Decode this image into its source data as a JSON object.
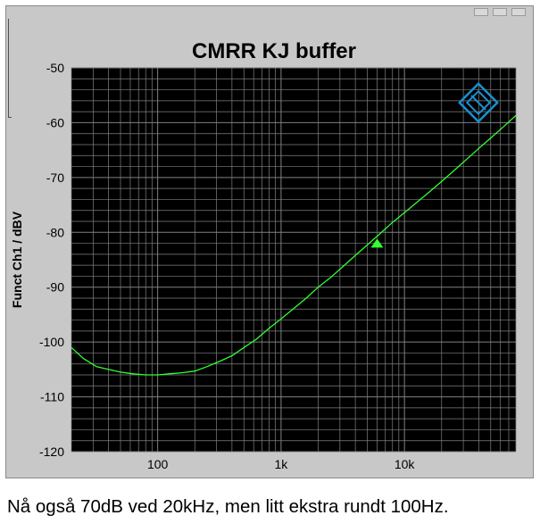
{
  "caption": "Nå også 70dB ved 20kHz, men litt ekstra rundt 100Hz.",
  "colors": {
    "plot_background": "#000000",
    "grid": "#808080",
    "trace": "#33ff33",
    "logo": "#1b8fd0",
    "frame_background": "#c8c8c8"
  },
  "logo_icon": "rohde-schwarz-logo-icon",
  "chart_data": {
    "type": "line",
    "title": "CMRR KJ buffer",
    "xlabel": "",
    "ylabel": "Funct Ch1 / dBV",
    "x_scale": "log",
    "xlim": [
      20,
      80000
    ],
    "ylim": [
      -120,
      -50
    ],
    "x_tick_values": [
      100,
      1000,
      10000
    ],
    "x_tick_labels": [
      "100",
      "1k",
      "10k"
    ],
    "y_tick_values": [
      -50,
      -60,
      -70,
      -80,
      -90,
      -100,
      -110,
      -120
    ],
    "y_tick_labels": [
      "-50",
      "-60",
      "-70",
      "-80",
      "-90",
      "-100",
      "-110",
      "-120"
    ],
    "grid": true,
    "series": [
      {
        "name": "",
        "x": [
          20,
          25,
          32,
          40,
          50,
          63,
          80,
          100,
          125,
          160,
          200,
          250,
          320,
          400,
          500,
          630,
          800,
          1000,
          1250,
          1600,
          2000,
          2500,
          3150,
          4000,
          5000,
          6300,
          8000,
          10000,
          12500,
          16000,
          20000,
          25000,
          31500,
          40000,
          50000,
          63000,
          80000
        ],
        "y": [
          -101,
          -103,
          -104.5,
          -105,
          -105.5,
          -105.8,
          -106,
          -106,
          -105.8,
          -105.6,
          -105.3,
          -104.5,
          -103.5,
          -102.5,
          -101,
          -99.5,
          -97.5,
          -95.8,
          -94,
          -92,
          -90,
          -88.3,
          -86.3,
          -84.2,
          -82.3,
          -80.3,
          -78.2,
          -76.4,
          -74.6,
          -72.6,
          -70.7,
          -68.8,
          -66.8,
          -64.7,
          -62.8,
          -60.8,
          -58.7
        ]
      }
    ],
    "marker": {
      "x": 6000,
      "y": -82.3,
      "shape": "triangle"
    }
  }
}
